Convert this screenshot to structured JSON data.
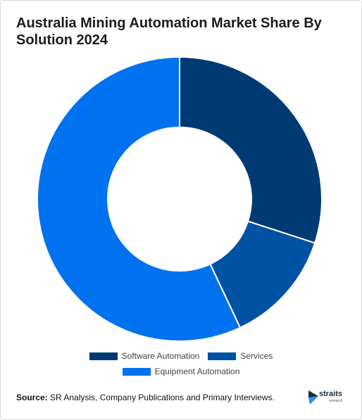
{
  "title": "Australia Mining Automation Market Share By Solution 2024",
  "chart_data": {
    "type": "pie",
    "variant": "donut",
    "title": "Australia Mining Automation Market Share By Solution 2024",
    "slices": [
      {
        "label": "Software Automation",
        "value": 30,
        "color": "#003a73"
      },
      {
        "label": "Services",
        "value": 13,
        "color": "#0052a5"
      },
      {
        "label": "Equipment Automation",
        "value": 57,
        "color": "#0072ef"
      }
    ],
    "legend_position": "bottom"
  },
  "source": {
    "label": "Source:",
    "text": "SR Analysis, Company Publications and Primary Interviews."
  },
  "brand": {
    "name": "straits",
    "sub": "research"
  }
}
